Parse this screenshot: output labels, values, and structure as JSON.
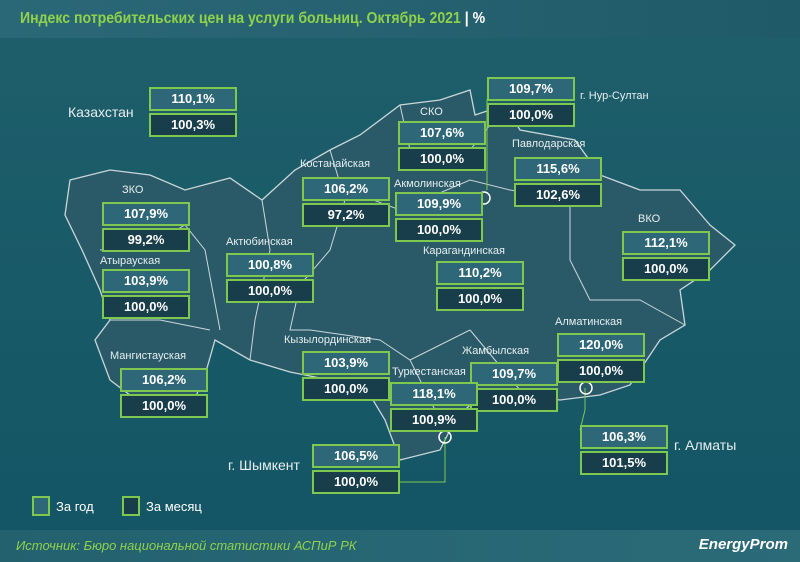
{
  "title": "Индекс потребительских цен на услуги больниц. Октябрь 2021",
  "unit": "| %",
  "legend": {
    "year": "За год",
    "month": "За месяц"
  },
  "source": "Источник: Бюро национальной статистики АСПиР РК",
  "logo": "EnergyProm",
  "colors": {
    "accent": "#7ec850",
    "year_box": "#2e6878",
    "month_box": "#173e4a"
  },
  "regions": [
    {
      "name": "Казахстан",
      "year": "110,1%",
      "month": "100,3%"
    },
    {
      "name": "г. Нур-Султан",
      "year": "109,7%",
      "month": "100,0%"
    },
    {
      "name": "СКО",
      "year": "107,6%",
      "month": "100,0%"
    },
    {
      "name": "Павлодарская",
      "year": "115,6%",
      "month": "102,6%"
    },
    {
      "name": "Костанайская",
      "year": "106,2%",
      "month": "97,2%"
    },
    {
      "name": "Акмолинская",
      "year": "109,9%",
      "month": "100,0%"
    },
    {
      "name": "ЗКО",
      "year": "107,9%",
      "month": "99,2%"
    },
    {
      "name": "ВКО",
      "year": "112,1%",
      "month": "100,0%"
    },
    {
      "name": "Актюбинская",
      "year": "100,8%",
      "month": "100,0%"
    },
    {
      "name": "Карагандинская",
      "year": "110,2%",
      "month": "100,0%"
    },
    {
      "name": "Атырауская",
      "year": "103,9%",
      "month": "100,0%"
    },
    {
      "name": "Алматинская",
      "year": "120,0%",
      "month": "100,0%"
    },
    {
      "name": "Кызылординская",
      "year": "103,9%",
      "month": "100,0%"
    },
    {
      "name": "Мангистауская",
      "year": "106,2%",
      "month": "100,0%"
    },
    {
      "name": "Жамбылская",
      "year": "109,7%",
      "month": "100,0%"
    },
    {
      "name": "Туркестанская",
      "year": "118,1%",
      "month": "100,9%"
    },
    {
      "name": "г. Алматы",
      "year": "106,3%",
      "month": "101,5%"
    },
    {
      "name": "г. Шымкент",
      "year": "106,5%",
      "month": "100,0%"
    }
  ]
}
